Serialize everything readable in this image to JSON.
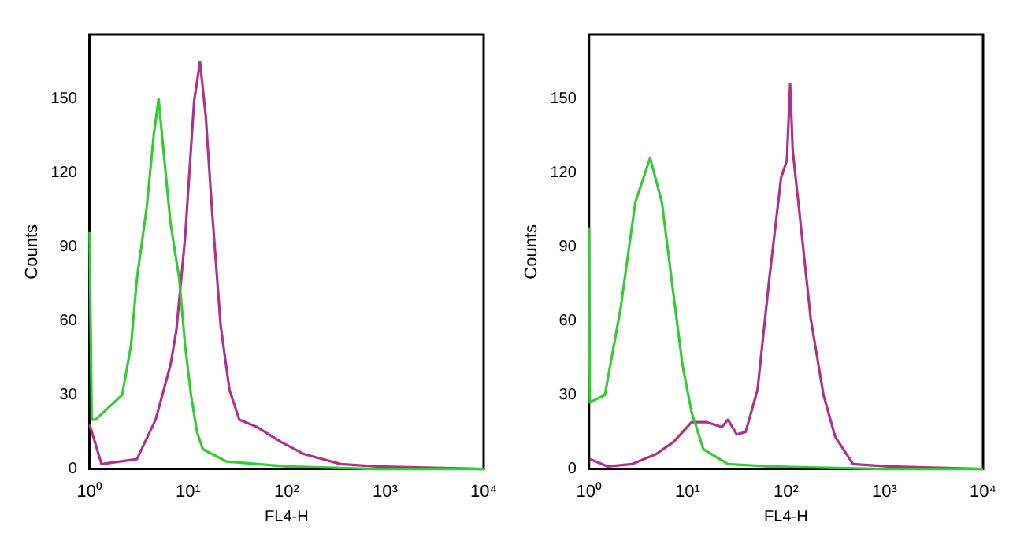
{
  "chart_data": [
    {
      "type": "line",
      "xlabel": "FL4-H",
      "ylabel": "Counts",
      "log": "x",
      "xlim": [
        1,
        10000
      ],
      "xticks": [
        {
          "value": 1,
          "label": "10⁰"
        },
        {
          "value": 10,
          "label": "10¹"
        },
        {
          "value": 100,
          "label": "10²"
        },
        {
          "value": 1000,
          "label": "10³"
        },
        {
          "value": 10000,
          "label": "10⁴"
        }
      ],
      "ylim": [
        0,
        176
      ],
      "yticks": [
        0,
        30,
        60,
        90,
        120,
        150
      ],
      "marker": "none",
      "series": [
        {
          "color": "#33cc33",
          "x": [
            1,
            1.05,
            1.15,
            2.14,
            2.63,
            3.02,
            3.8,
            4.47,
            5.01,
            5.75,
            6.61,
            8.13,
            9.33,
            10.7,
            12.3,
            14.1,
            24.5,
            100,
            794,
            10000
          ],
          "values": [
            96,
            20,
            20,
            30,
            50,
            77,
            106,
            135,
            150,
            125,
            100,
            77,
            50,
            30,
            15,
            8,
            3,
            1,
            0,
            0
          ]
        },
        {
          "color": "#b0308f",
          "x": [
            1,
            1.32,
            3.02,
            4.68,
            6.61,
            7.59,
            9.33,
            11.5,
            13.2,
            15.1,
            17.4,
            21.4,
            26.3,
            33.1,
            50.1,
            87.1,
            151,
            355,
            813,
            10000
          ],
          "values": [
            18,
            2,
            4,
            20,
            42,
            56,
            94,
            149,
            165,
            143,
            106,
            58,
            32,
            20,
            17,
            11,
            6,
            2,
            1,
            0
          ]
        }
      ]
    },
    {
      "type": "line",
      "xlabel": "FL4-H",
      "ylabel": "Counts",
      "log": "x",
      "xlim": [
        1,
        10000
      ],
      "xticks": [
        {
          "value": 1,
          "label": "10⁰"
        },
        {
          "value": 10,
          "label": "10¹"
        },
        {
          "value": 100,
          "label": "10²"
        },
        {
          "value": 1000,
          "label": "10³"
        },
        {
          "value": 10000,
          "label": "10⁴"
        }
      ],
      "ylim": [
        0,
        176
      ],
      "yticks": [
        0,
        30,
        60,
        90,
        120,
        150
      ],
      "marker": "none",
      "series": [
        {
          "color": "#33cc33",
          "x": [
            1,
            1.02,
            1.45,
            2.09,
            2.95,
            4.17,
            5.5,
            7.24,
            8.91,
            11,
            14.5,
            25.7,
            67.6,
            1000,
            10000
          ],
          "values": [
            98,
            27,
            30,
            65,
            108,
            126,
            108,
            70,
            42,
            23,
            8,
            2,
            1,
            0,
            0
          ]
        },
        {
          "color": "#b0308f",
          "x": [
            1.02,
            1.55,
            2.75,
            4.79,
            7.24,
            11,
            15.5,
            22.4,
            25.7,
            31.6,
            38.9,
            51.3,
            67.6,
            89.1,
            102,
            110,
            117,
            135,
            178,
            240,
            316,
            479,
            1096,
            10000
          ],
          "values": [
            4,
            1,
            2,
            6,
            11,
            19,
            19,
            17,
            20,
            14,
            15,
            32,
            77,
            118,
            125,
            156,
            129,
            106,
            61,
            30,
            13,
            2,
            1,
            0
          ]
        }
      ]
    }
  ]
}
